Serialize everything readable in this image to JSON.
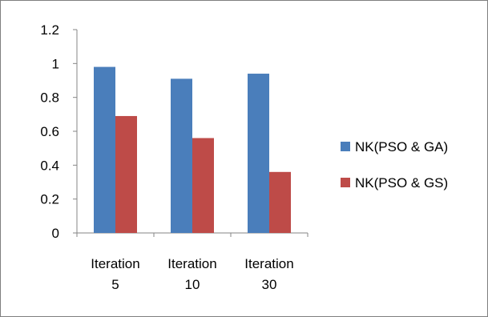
{
  "chart_data": {
    "type": "bar",
    "title": "",
    "xlabel": "",
    "ylabel": "",
    "categories": [
      [
        "Iteration",
        "5"
      ],
      [
        "Iteration",
        "10"
      ],
      [
        "Iteration",
        "30"
      ]
    ],
    "series": [
      {
        "name": "NK(PSO & GA)",
        "color": "#4a7ebb",
        "values": [
          0.98,
          0.91,
          0.94
        ]
      },
      {
        "name": "NK(PSO & GS)",
        "color": "#be4b48",
        "values": [
          0.69,
          0.56,
          0.36
        ]
      }
    ],
    "ylim": [
      0,
      1.2
    ],
    "yticks": [
      "0",
      "0.2",
      "0.4",
      "0.6",
      "0.8",
      "1",
      "1.2"
    ],
    "grid": false,
    "legend_position": "right"
  }
}
